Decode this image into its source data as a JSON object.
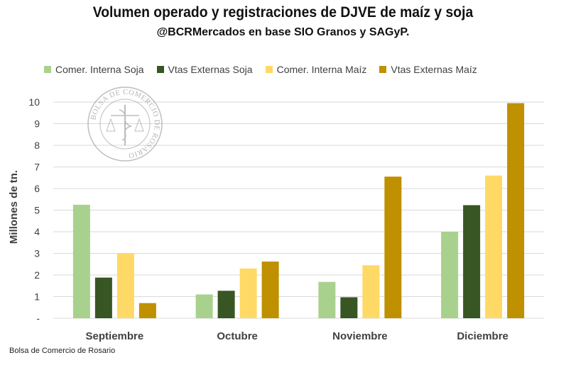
{
  "chart_data": {
    "type": "bar",
    "title": "Volumen operado y registraciones de DJVE de maíz y soja",
    "subtitle": "@BCRMercados en base SIO Granos y SAGyP.",
    "ylabel": "Millones de tn.",
    "xlabel": "",
    "ylim": [
      0,
      10
    ],
    "yticks": [
      "-",
      "1",
      "2",
      "3",
      "4",
      "5",
      "6",
      "7",
      "8",
      "9",
      "10"
    ],
    "grid": true,
    "legend_position": "top",
    "categories": [
      "Septiembre",
      "Octubre",
      "Noviembre",
      "Diciembre"
    ],
    "series": [
      {
        "name": "Comer. Interna Soja",
        "color": "#a9d18e",
        "values": [
          5.25,
          1.1,
          1.68,
          4.0
        ]
      },
      {
        "name": "Vtas Externas Soja",
        "color": "#375623",
        "values": [
          1.88,
          1.27,
          0.97,
          5.23
        ]
      },
      {
        "name": "Comer. Interna Maíz",
        "color": "#ffd966",
        "values": [
          3.0,
          2.3,
          2.45,
          6.6
        ]
      },
      {
        "name": "Vtas Externas Maíz",
        "color": "#bf9000",
        "values": [
          0.7,
          2.62,
          6.55,
          9.95
        ]
      }
    ]
  },
  "watermark": {
    "text": "BOLSA DE COMERCIO DE ROSARIO"
  },
  "footer": {
    "source": "Bolsa de Comercio de Rosario"
  }
}
